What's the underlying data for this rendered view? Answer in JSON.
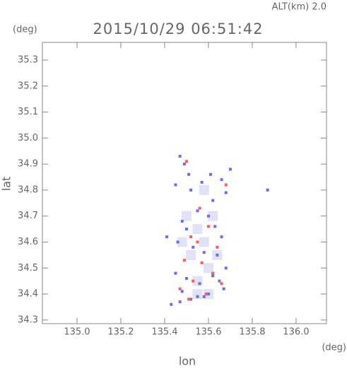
{
  "chart_data": {
    "type": "scatter",
    "title": "2015/10/29 06:51:42",
    "annotation": "ALT(km) 2.0",
    "yunit": "(deg)",
    "xunit": "(deg)",
    "ylabel": "lat",
    "xlabel": "lon",
    "xlim": [
      134.842,
      136.139
    ],
    "ylim": [
      34.286,
      35.368
    ],
    "xticks": [
      {
        "value": 135.0,
        "label": "135.0"
      },
      135.2,
      135.4,
      135.6,
      135.8,
      {
        "value": 136.0,
        "label": "136.0"
      }
    ],
    "yticks": [
      34.3,
      34.4,
      34.5,
      34.6,
      34.7,
      34.8,
      34.9,
      {
        "value": 35.0,
        "label": "35.0"
      },
      35.1,
      35.2,
      35.3
    ],
    "series": [
      {
        "color": "#e2e2f6",
        "size": 14,
        "x": [
          135.55,
          135.58,
          135.52,
          135.6,
          135.55,
          135.62,
          135.5,
          135.58,
          135.55,
          135.6,
          135.48,
          135.64
        ],
        "y": [
          34.65,
          34.6,
          34.55,
          34.5,
          34.45,
          34.7,
          34.7,
          34.8,
          34.4,
          34.4,
          34.6,
          34.55
        ]
      },
      {
        "color": "#6a6aff",
        "size": 4,
        "x": [
          135.47,
          135.49,
          135.51,
          135.45,
          135.52,
          135.57,
          135.61,
          135.66,
          135.68,
          135.62,
          135.55,
          135.6,
          135.48,
          135.5,
          135.63,
          135.66,
          135.46,
          135.53,
          135.58,
          135.64,
          135.68,
          135.45,
          135.5,
          135.56,
          135.62,
          135.67,
          135.48,
          135.55,
          135.6,
          135.43,
          135.47,
          135.52,
          135.58,
          135.65,
          135.87,
          135.41,
          135.7
        ],
        "y": [
          34.93,
          34.9,
          34.86,
          34.82,
          34.8,
          34.83,
          34.86,
          34.84,
          34.79,
          34.76,
          34.72,
          34.7,
          34.68,
          34.65,
          34.66,
          34.62,
          34.6,
          34.58,
          34.56,
          34.55,
          34.5,
          34.48,
          34.46,
          34.44,
          34.47,
          34.42,
          34.41,
          34.39,
          34.4,
          34.36,
          34.37,
          34.38,
          34.39,
          34.45,
          34.8,
          34.62,
          34.88
        ]
      },
      {
        "color": "#ff5a5a",
        "size": 4,
        "x": [
          135.5,
          135.68,
          135.56,
          135.6,
          135.52,
          135.64,
          135.49,
          135.57,
          135.62,
          135.53,
          135.47,
          135.66,
          135.59,
          135.51,
          135.55
        ],
        "y": [
          34.91,
          34.82,
          34.73,
          34.66,
          34.62,
          34.58,
          34.53,
          34.52,
          34.48,
          34.45,
          34.42,
          34.44,
          34.4,
          34.38,
          34.6
        ]
      }
    ]
  }
}
